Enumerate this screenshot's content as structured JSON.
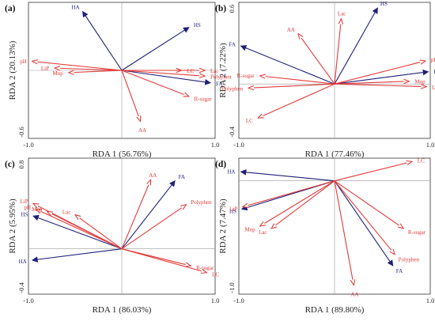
{
  "colors": {
    "blue": "#1f1f7a",
    "red": "#e23b3b"
  },
  "chart_data": [
    {
      "type": "scatter",
      "panel": "(a)",
      "xlabel": "RDA 1 (56.76%)",
      "ylabel": "RDA 2 (20.13%)",
      "xlim": [
        -1.0,
        1.0
      ],
      "ylim": [
        -0.6,
        0.6
      ],
      "x_tick_labels": [
        {
          "v": -1.0,
          "t": "-1.0"
        },
        {
          "v": 1.0,
          "t": "1.0"
        }
      ],
      "y_tick_labels": [
        {
          "v": -0.6,
          "t": "-0.6"
        }
      ],
      "vectors": [
        {
          "name": "HA",
          "x": -0.42,
          "y": 0.52,
          "color": "blue"
        },
        {
          "name": "HS",
          "x": 0.72,
          "y": 0.38,
          "color": "blue"
        },
        {
          "name": "FA",
          "x": 0.95,
          "y": -0.11,
          "color": "blue"
        },
        {
          "name": "pH",
          "x": -0.96,
          "y": 0.08,
          "color": "red"
        },
        {
          "name": "LiP",
          "x": -0.72,
          "y": 0.02,
          "color": "red"
        },
        {
          "name": "Mnp",
          "x": -0.57,
          "y": -0.02,
          "color": "red"
        },
        {
          "name": "LC",
          "x": 0.64,
          "y": 0.0,
          "color": "red"
        },
        {
          "name": "Lac",
          "x": 0.89,
          "y": 0.0,
          "color": "red"
        },
        {
          "name": "Polyphen",
          "x": 0.89,
          "y": -0.05,
          "color": "red"
        },
        {
          "name": "R-sugar",
          "x": 0.72,
          "y": -0.23,
          "color": "red"
        },
        {
          "name": "AA",
          "x": 0.2,
          "y": -0.45,
          "color": "red"
        }
      ]
    },
    {
      "type": "scatter",
      "panel": "(b)",
      "xlabel": "RDA 1 (77.46%)",
      "ylabel": "RDA 2 (7.22%)",
      "xlim": [
        -1.0,
        1.0
      ],
      "ylim": [
        -0.4,
        0.6
      ],
      "x_tick_labels": [
        {
          "v": -1.0,
          "t": "-1.0"
        },
        {
          "v": 1.0,
          "t": "1.0"
        }
      ],
      "y_tick_labels": [
        {
          "v": 0.6,
          "t": "0.6"
        },
        {
          "v": -0.4,
          "t": "-0.4"
        }
      ],
      "vectors": [
        {
          "name": "HS",
          "x": 0.45,
          "y": 0.56,
          "color": "blue"
        },
        {
          "name": "FA",
          "x": -0.98,
          "y": 0.28,
          "color": "blue"
        },
        {
          "name": "HA",
          "x": 0.98,
          "y": 0.09,
          "color": "blue"
        },
        {
          "name": "Lac",
          "x": 0.07,
          "y": 0.48,
          "color": "red"
        },
        {
          "name": "AA",
          "x": -0.38,
          "y": 0.37,
          "color": "red"
        },
        {
          "name": "pH",
          "x": 0.95,
          "y": 0.17,
          "color": "red"
        },
        {
          "name": "Mnp",
          "x": 0.78,
          "y": 0.02,
          "color": "red"
        },
        {
          "name": "LiP",
          "x": 0.96,
          "y": -0.02,
          "color": "red"
        },
        {
          "name": "R-sugar",
          "x": -0.78,
          "y": 0.06,
          "color": "red"
        },
        {
          "name": "Polyphen",
          "x": -0.9,
          "y": -0.03,
          "color": "red"
        },
        {
          "name": "LC",
          "x": -0.8,
          "y": -0.25,
          "color": "red"
        }
      ]
    },
    {
      "type": "scatter",
      "panel": "(c)",
      "xlabel": "RDA 1 (86.03%)",
      "ylabel": "RDA 2 (5.95%)",
      "xlim": [
        -1.0,
        1.0
      ],
      "ylim": [
        -0.4,
        0.8
      ],
      "x_tick_labels": [
        {
          "v": -1.0,
          "t": "-1.0"
        },
        {
          "v": 1.0,
          "t": "1.0"
        }
      ],
      "y_tick_labels": [
        {
          "v": 0.8,
          "t": "0.8"
        },
        {
          "v": -0.4,
          "t": "-0.4"
        }
      ],
      "vectors": [
        {
          "name": "FA",
          "x": 0.57,
          "y": 0.6,
          "color": "blue"
        },
        {
          "name": "HS",
          "x": -0.95,
          "y": 0.29,
          "color": "blue"
        },
        {
          "name": "HA",
          "x": -0.96,
          "y": -0.1,
          "color": "blue"
        },
        {
          "name": "AA",
          "x": 0.31,
          "y": 0.61,
          "color": "red"
        },
        {
          "name": "Polyphen",
          "x": 0.69,
          "y": 0.39,
          "color": "red"
        },
        {
          "name": "LiP",
          "x": -0.95,
          "y": 0.4,
          "color": "red"
        },
        {
          "name": "pH",
          "x": -0.92,
          "y": 0.35,
          "color": "red"
        },
        {
          "name": "Mnp",
          "x": -0.8,
          "y": 0.33,
          "color": "red"
        },
        {
          "name": "Lac",
          "x": -0.5,
          "y": 0.3,
          "color": "red"
        },
        {
          "name": "R-sugar",
          "x": 0.74,
          "y": -0.15,
          "color": "red"
        },
        {
          "name": "LC",
          "x": 0.91,
          "y": -0.21,
          "color": "red"
        }
      ]
    },
    {
      "type": "scatter",
      "panel": "(d)",
      "xlabel": "RDA 1 (89.80%)",
      "ylabel": "RDA 2 (7.47%)",
      "xlim": [
        -1.0,
        1.0
      ],
      "ylim": [
        -1.0,
        0.2
      ],
      "x_tick_labels": [
        {
          "v": -1.0,
          "t": "-1.0"
        },
        {
          "v": 1.0,
          "t": "1.0"
        }
      ],
      "y_tick_labels": [
        {
          "v": -1.0,
          "t": "-1.0"
        }
      ],
      "vectors": [
        {
          "name": "HA",
          "x": -0.98,
          "y": 0.08,
          "color": "blue"
        },
        {
          "name": "HS",
          "x": -0.97,
          "y": -0.25,
          "color": "blue"
        },
        {
          "name": "FA",
          "x": 0.61,
          "y": -0.75,
          "color": "blue"
        },
        {
          "name": "LC",
          "x": 0.81,
          "y": 0.17,
          "color": "red"
        },
        {
          "name": "LiP",
          "x": -0.96,
          "y": -0.23,
          "color": "red"
        },
        {
          "name": "Mnp",
          "x": -0.78,
          "y": -0.4,
          "color": "red"
        },
        {
          "name": "Lac",
          "x": -0.66,
          "y": -0.42,
          "color": "red"
        },
        {
          "name": "R-sugar",
          "x": 0.72,
          "y": -0.42,
          "color": "red"
        },
        {
          "name": "Polyphen",
          "x": 0.63,
          "y": -0.65,
          "color": "red"
        },
        {
          "name": "AA",
          "x": 0.2,
          "y": -0.92,
          "color": "red"
        }
      ]
    }
  ]
}
